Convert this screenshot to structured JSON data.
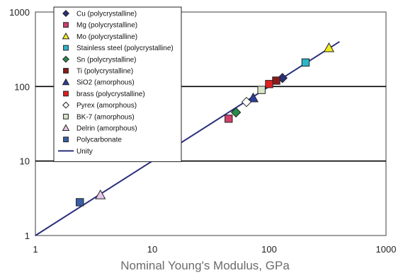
{
  "chart_data": {
    "type": "scatter",
    "title": "",
    "xlabel": "Nominal Young's Modulus, GPa",
    "ylabel": "",
    "x_scale": "log",
    "y_scale": "log",
    "xlim": [
      1,
      1000
    ],
    "ylim": [
      1,
      1000
    ],
    "x_ticks": [
      "1",
      "10",
      "100",
      "1000"
    ],
    "y_ticks": [
      "1",
      "10",
      "100",
      "1000"
    ],
    "grid": "horizontal major lines",
    "legend_position": "top-left",
    "series": [
      {
        "name": "Cu (polycrystalline)",
        "marker": "diamond",
        "color": "#2b2f7a",
        "x": [
          130
        ],
        "y": [
          130
        ]
      },
      {
        "name": "Mg (polycrystalline)",
        "marker": "square",
        "color": "#d0406a",
        "x": [
          45
        ],
        "y": [
          37
        ]
      },
      {
        "name": "Mo (polycrystalline)",
        "marker": "triangle",
        "color": "#f2ec1a",
        "x": [
          325
        ],
        "y": [
          330
        ]
      },
      {
        "name": "Stainless steel (polycrystalline)",
        "marker": "square",
        "color": "#2ab5c8",
        "x": [
          205
        ],
        "y": [
          210
        ]
      },
      {
        "name": "Sn (polycrystalline)",
        "marker": "diamond",
        "color": "#2a8a4a",
        "x": [
          52
        ],
        "y": [
          45
        ]
      },
      {
        "name": "Ti (polycrystalline)",
        "marker": "square",
        "color": "#8b1a1a",
        "x": [
          115
        ],
        "y": [
          120
        ]
      },
      {
        "name": "SiO2 (amorphous)",
        "marker": "triangle",
        "color": "#2b3f9a",
        "x": [
          73
        ],
        "y": [
          70
        ]
      },
      {
        "name": "brass (polycrystalline)",
        "marker": "square",
        "color": "#e02020",
        "x": [
          100
        ],
        "y": [
          108
        ]
      },
      {
        "name": "Pyrex (amorphous)",
        "marker": "diamond",
        "color": "#ffffff",
        "x": [
          64
        ],
        "y": [
          62
        ]
      },
      {
        "name": "BK-7 (amorphous)",
        "marker": "square",
        "color": "#d8e6c8",
        "x": [
          86
        ],
        "y": [
          90
        ]
      },
      {
        "name": "Delrin (amorphous)",
        "marker": "triangle",
        "color": "#e8c8e8",
        "x": [
          3.6
        ],
        "y": [
          3.5
        ]
      },
      {
        "name": "Polycarbonate",
        "marker": "square",
        "color": "#3a5fa8",
        "x": [
          2.4
        ],
        "y": [
          2.8
        ]
      }
    ],
    "lines": [
      {
        "name": "Unity",
        "color": "#2b2f7a",
        "x": [
          1,
          400
        ],
        "y": [
          1,
          400
        ]
      }
    ]
  }
}
